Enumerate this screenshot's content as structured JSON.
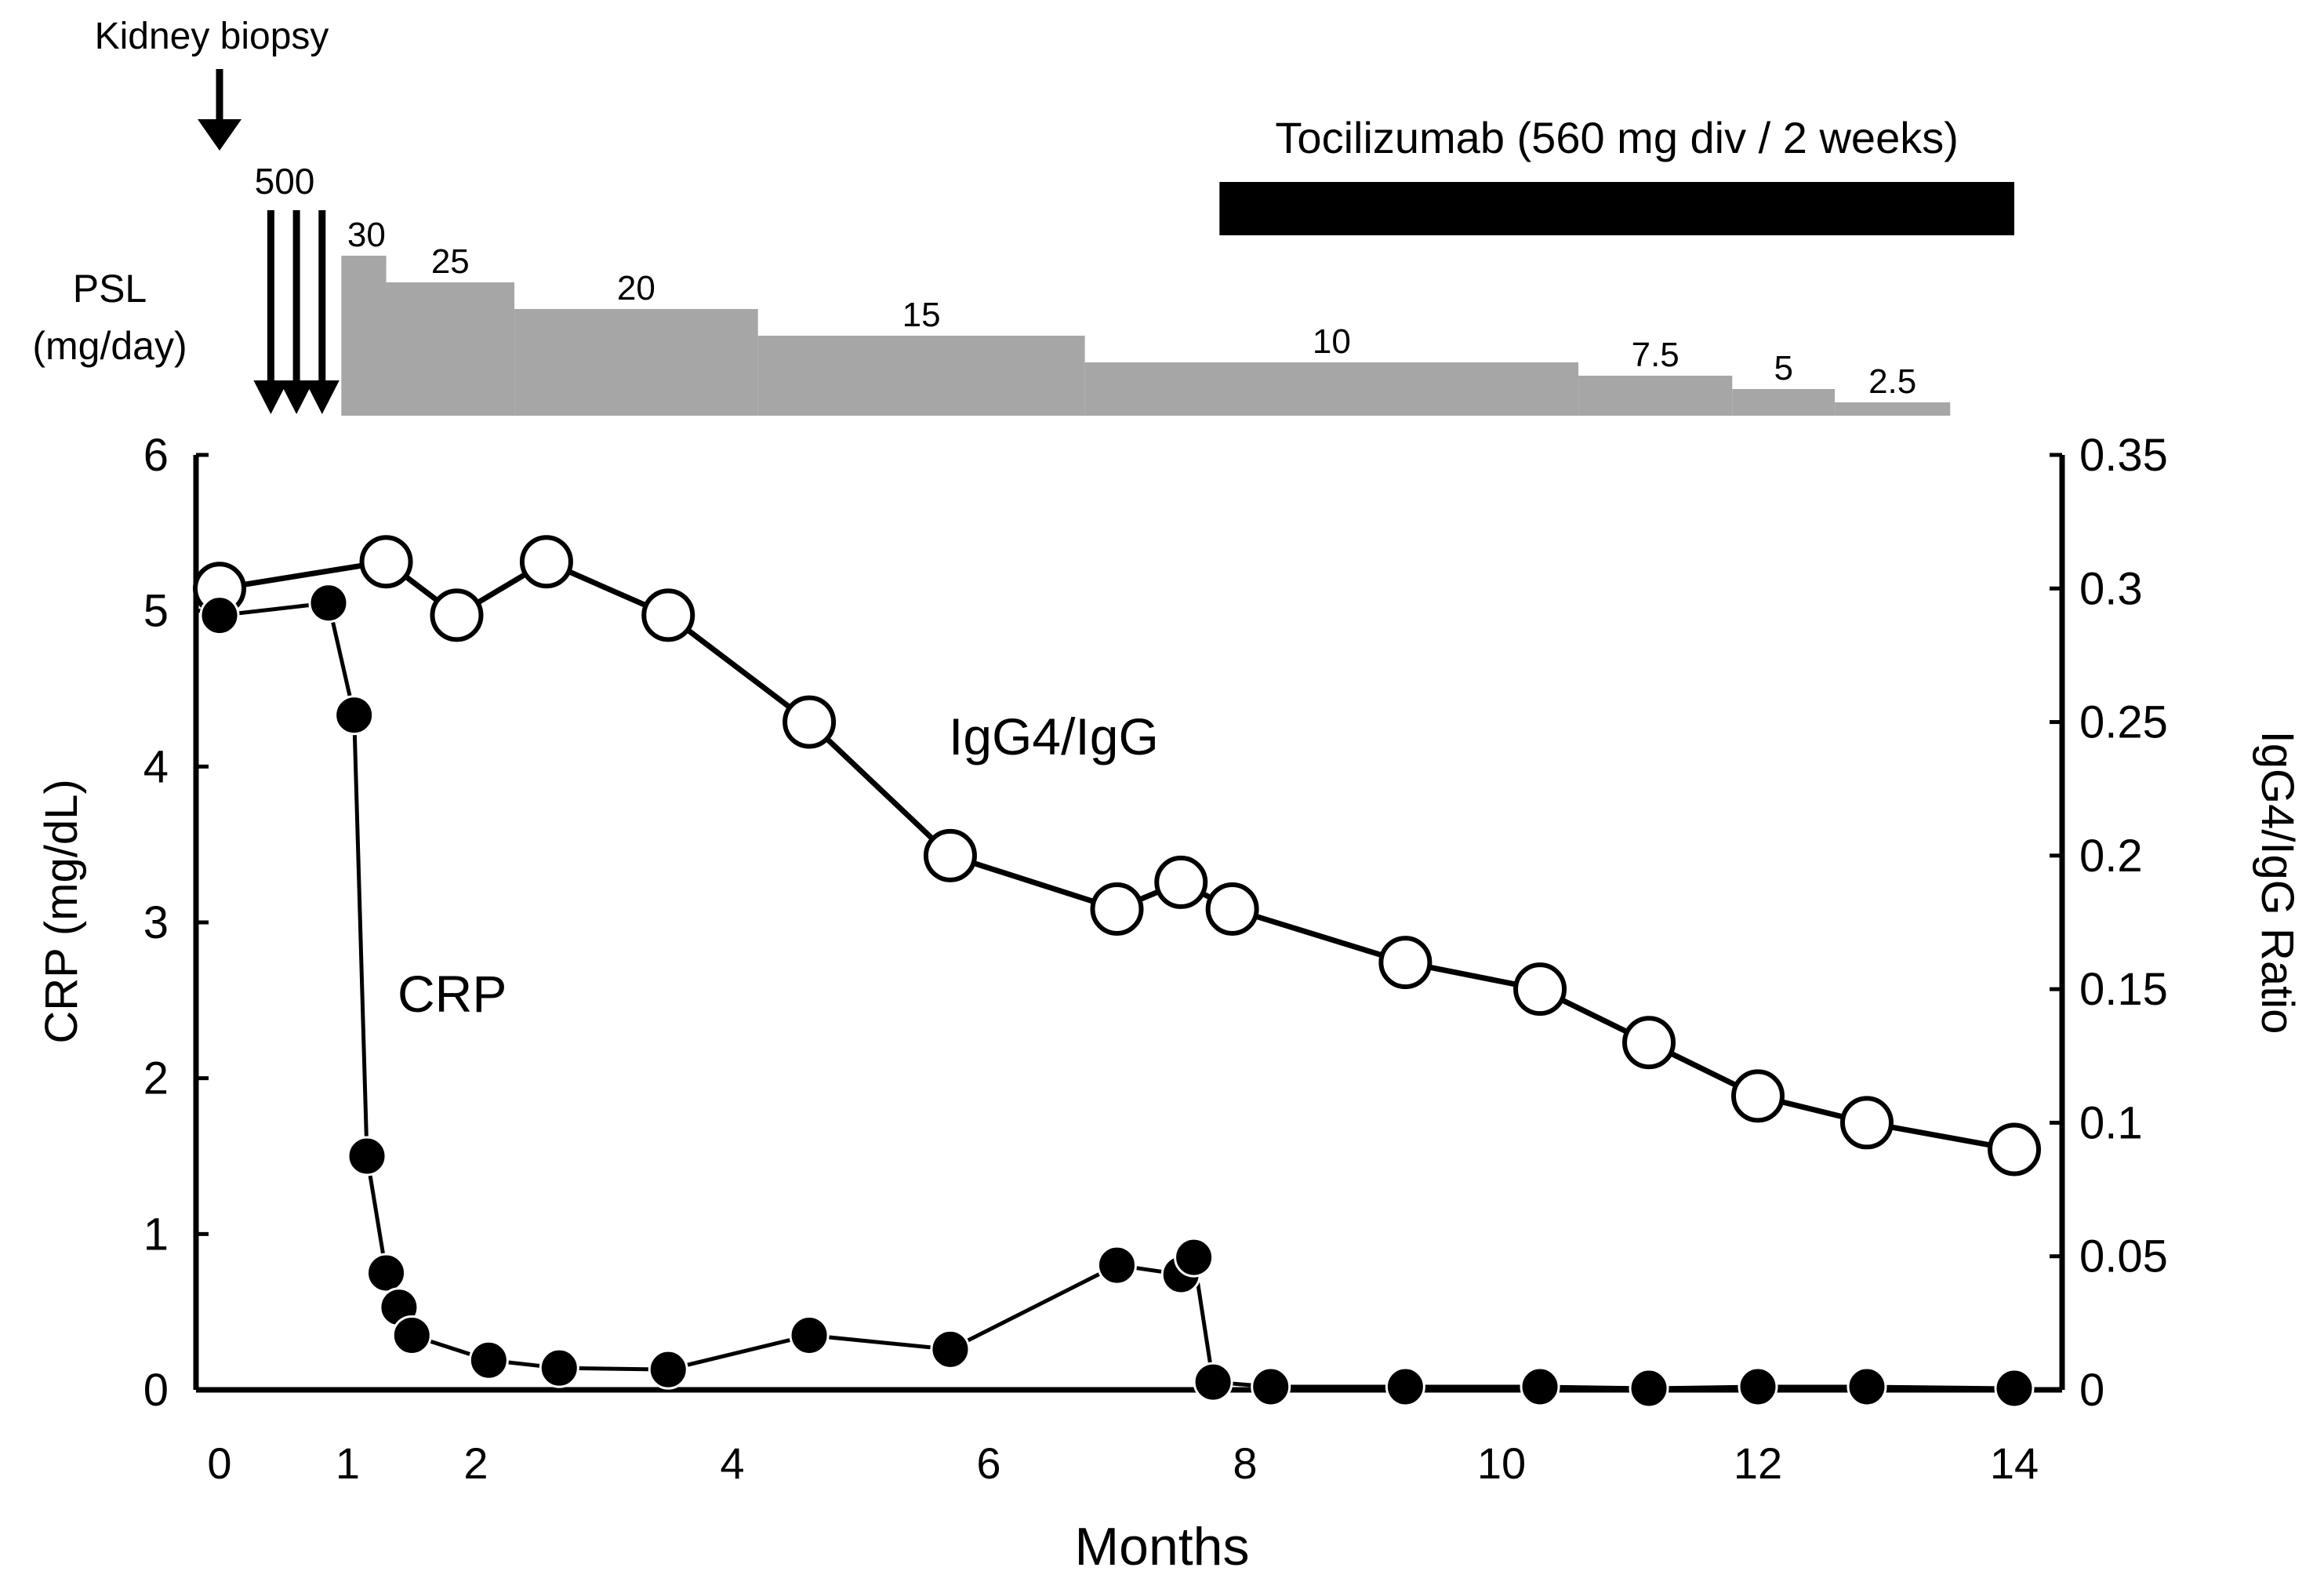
{
  "chart_data": {
    "type": "line",
    "xlabel": "Months",
    "ylabel_left": "CRP (mg/dL)",
    "ylabel_right": "IgG4/IgG Ratio",
    "x_ticks": [
      "0",
      "1",
      "2",
      "4",
      "6",
      "8",
      "10",
      "12",
      "14"
    ],
    "y_left_ticks": [
      "0",
      "1",
      "2",
      "3",
      "4",
      "5",
      "6"
    ],
    "y_right_ticks": [
      "0",
      "0.05",
      "0.1",
      "0.15",
      "0.2",
      "0.25",
      "0.3",
      "0.35"
    ],
    "ylim_left": [
      0,
      6
    ],
    "ylim_right": [
      0,
      0.35
    ],
    "series": [
      {
        "name": "CRP",
        "label": "CRP",
        "axis": "left",
        "marker": "filled-circle",
        "points": [
          [
            0,
            4.97
          ],
          [
            0.85,
            5.05
          ],
          [
            1.05,
            4.33
          ],
          [
            1.15,
            1.5
          ],
          [
            1.3,
            0.75
          ],
          [
            1.4,
            0.53
          ],
          [
            1.5,
            0.35
          ],
          [
            2.1,
            0.19
          ],
          [
            2.65,
            0.14
          ],
          [
            3.5,
            0.13
          ],
          [
            4.6,
            0.35
          ],
          [
            5.7,
            0.26
          ],
          [
            7.0,
            0.8
          ],
          [
            7.5,
            0.74
          ],
          [
            7.6,
            0.85
          ],
          [
            7.75,
            0.05
          ],
          [
            8.2,
            0.02
          ],
          [
            9.25,
            0.02
          ],
          [
            10.3,
            0.02
          ],
          [
            11.15,
            0.01
          ],
          [
            12.0,
            0.02
          ],
          [
            12.85,
            0.02
          ],
          [
            14.0,
            0.01
          ]
        ]
      },
      {
        "name": "IgG4/IgG",
        "label": "IgG4/IgG",
        "axis": "right",
        "marker": "open-circle",
        "points": [
          [
            0,
            0.3
          ],
          [
            1.3,
            0.31
          ],
          [
            1.85,
            0.29
          ],
          [
            2.55,
            0.31
          ],
          [
            3.5,
            0.29
          ],
          [
            4.6,
            0.25
          ],
          [
            5.7,
            0.2
          ],
          [
            7.0,
            0.18
          ],
          [
            7.5,
            0.19
          ],
          [
            7.9,
            0.18
          ],
          [
            9.25,
            0.16
          ],
          [
            10.3,
            0.15
          ],
          [
            11.15,
            0.13
          ],
          [
            12.0,
            0.11
          ],
          [
            12.85,
            0.1
          ],
          [
            14.0,
            0.09
          ]
        ]
      }
    ],
    "annotations": {
      "biopsy_label": "Kidney biopsy",
      "pulse_label": "500",
      "psl_label_line1": "PSL",
      "psl_label_line2": "(mg/day)",
      "tocilizumab_label": "Tocilizumab (560 mg div / 2 weeks)",
      "psl_steps": [
        {
          "dose": "30",
          "level": 30,
          "start_month": 0.95,
          "end_month": 1.3
        },
        {
          "dose": "25",
          "level": 25,
          "start_month": 1.3,
          "end_month": 2.3
        },
        {
          "dose": "20",
          "level": 20,
          "start_month": 2.3,
          "end_month": 4.2
        },
        {
          "dose": "15",
          "level": 15,
          "start_month": 4.2,
          "end_month": 6.75
        },
        {
          "dose": "10",
          "level": 10,
          "start_month": 6.75,
          "end_month": 10.6
        },
        {
          "dose": "7.5",
          "level": 7.5,
          "start_month": 10.6,
          "end_month": 11.8
        },
        {
          "dose": "5",
          "level": 5,
          "start_month": 11.8,
          "end_month": 12.6
        },
        {
          "dose": "2.5",
          "level": 2.5,
          "start_month": 12.6,
          "end_month": 13.5
        }
      ],
      "tocilizumab_start_month": 7.8,
      "tocilizumab_end_month": 14.0,
      "biopsy_month": 0.0,
      "pulse_months": [
        0.4,
        0.6,
        0.8
      ]
    }
  }
}
